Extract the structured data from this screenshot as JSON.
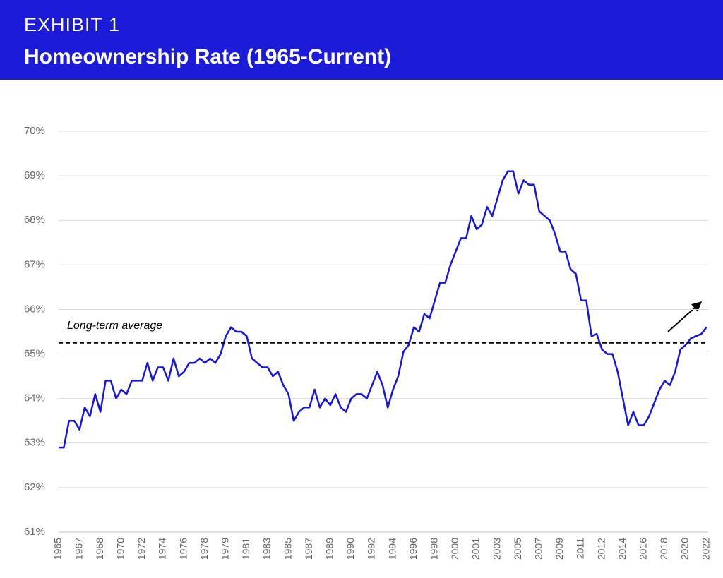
{
  "header": {
    "label": "EXHIBIT 1"
  },
  "chart_data": {
    "type": "line",
    "title": "Homeownership Rate (1965-Current)",
    "color": "#1414e6",
    "grid": true,
    "ylim": [
      61,
      70
    ],
    "yticks": [
      {
        "value": 61,
        "label": "61%"
      },
      {
        "value": 62,
        "label": "62%"
      },
      {
        "value": 63,
        "label": "63%"
      },
      {
        "value": 64,
        "label": "64%"
      },
      {
        "value": 65,
        "label": "65%"
      },
      {
        "value": 66,
        "label": "66%"
      },
      {
        "value": 67,
        "label": "67%"
      },
      {
        "value": 68,
        "label": "68%"
      },
      {
        "value": 69,
        "label": "69%"
      },
      {
        "value": 70,
        "label": "70%"
      }
    ],
    "reference_line": {
      "value": 65.25,
      "label": "Long-term average"
    },
    "categories": [
      "1965",
      null,
      null,
      null,
      "1967",
      null,
      null,
      null,
      "1968",
      null,
      null,
      null,
      "1970",
      null,
      null,
      null,
      "1972",
      null,
      null,
      null,
      "1974",
      null,
      null,
      null,
      "1976",
      null,
      null,
      null,
      "1978",
      null,
      null,
      null,
      "1979",
      null,
      null,
      null,
      "1981",
      null,
      null,
      null,
      "1983",
      null,
      null,
      null,
      "1985",
      null,
      null,
      null,
      "1987",
      null,
      null,
      null,
      "1989",
      null,
      null,
      null,
      "1990",
      null,
      null,
      null,
      "1992",
      null,
      null,
      null,
      "1994",
      null,
      null,
      null,
      "1996",
      null,
      null,
      null,
      "1998",
      null,
      null,
      null,
      "2000",
      null,
      null,
      null,
      "2001",
      null,
      null,
      null,
      "2003",
      null,
      null,
      null,
      "2005",
      null,
      null,
      null,
      "2007",
      null,
      null,
      null,
      "2009",
      null,
      null,
      null,
      "2011",
      null,
      null,
      null,
      "2012",
      null,
      null,
      null,
      "2014",
      null,
      null,
      null,
      "2016",
      null,
      null,
      null,
      "2018",
      null,
      null,
      null,
      "2020",
      null,
      null,
      null,
      "2022"
    ],
    "values": [
      62.9,
      62.9,
      63.5,
      63.5,
      63.3,
      63.8,
      63.6,
      64.1,
      63.7,
      64.4,
      64.4,
      64.0,
      64.2,
      64.1,
      64.4,
      64.4,
      64.4,
      64.8,
      64.4,
      64.7,
      64.7,
      64.4,
      64.9,
      64.5,
      64.6,
      64.8,
      64.8,
      64.9,
      64.8,
      64.9,
      64.8,
      65.0,
      65.4,
      65.6,
      65.5,
      65.5,
      65.4,
      64.9,
      64.8,
      64.7,
      64.7,
      64.5,
      64.6,
      64.3,
      64.1,
      63.5,
      63.7,
      63.8,
      63.8,
      64.2,
      63.8,
      64.0,
      63.85,
      64.1,
      63.8,
      63.7,
      64.0,
      64.1,
      64.1,
      64.0,
      64.3,
      64.6,
      64.3,
      63.8,
      64.2,
      64.5,
      65.05,
      65.2,
      65.6,
      65.5,
      65.9,
      65.8,
      66.2,
      66.6,
      66.6,
      67.0,
      67.3,
      67.6,
      67.6,
      68.1,
      67.8,
      67.9,
      68.3,
      68.1,
      68.5,
      68.9,
      69.1,
      69.1,
      68.6,
      68.9,
      68.8,
      68.8,
      68.2,
      68.1,
      68.0,
      67.7,
      67.3,
      67.3,
      66.9,
      66.8,
      66.2,
      66.2,
      65.4,
      65.45,
      65.1,
      65.0,
      65.0,
      64.6,
      64.0,
      63.4,
      63.7,
      63.4,
      63.4,
      63.6,
      63.9,
      64.2,
      64.4,
      64.3,
      64.6,
      65.1,
      65.2,
      65.35,
      65.4,
      65.45,
      65.6
    ]
  }
}
